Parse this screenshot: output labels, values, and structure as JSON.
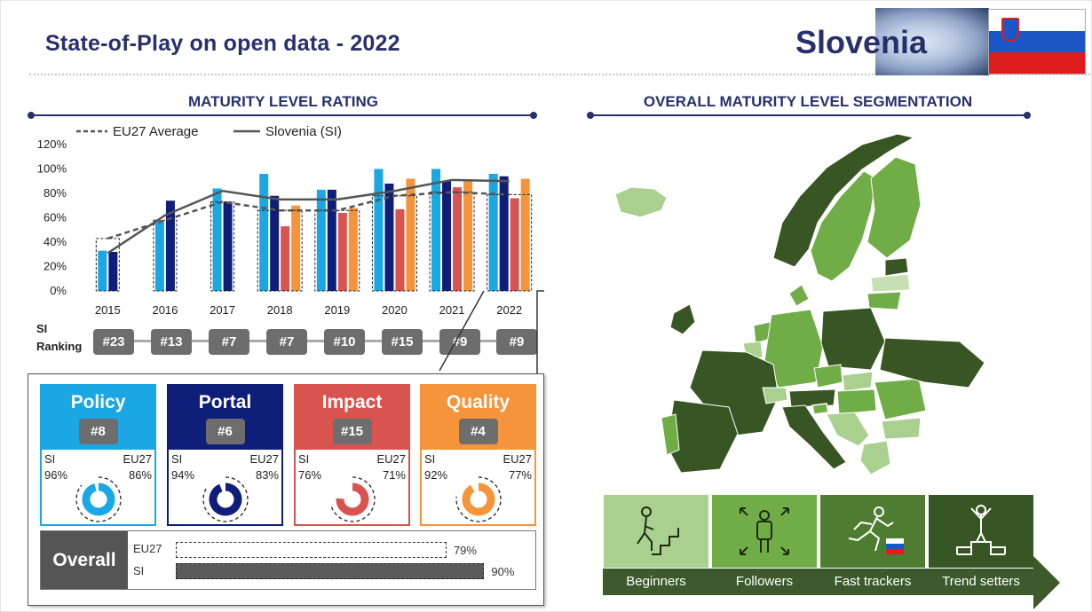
{
  "header": {
    "title": "State-of-Play on open data - 2022",
    "country": "Slovenia"
  },
  "maturity": {
    "section_title": "MATURITY LEVEL RATING",
    "legend": {
      "eu": "EU27 Average",
      "si": "Slovenia (SI)"
    },
    "ranking_label_1": "SI",
    "ranking_label_2": "Ranking",
    "ranks": [
      "#23",
      "#13",
      "#7",
      "#7",
      "#10",
      "#15",
      "#9",
      "#9"
    ]
  },
  "chart_data": {
    "type": "bar",
    "categories": [
      "2015",
      "2016",
      "2017",
      "2018",
      "2019",
      "2020",
      "2021",
      "2022"
    ],
    "ylim": [
      0,
      120
    ],
    "yticks": [
      "0%",
      "20%",
      "40%",
      "60%",
      "80%",
      "100%",
      "120%"
    ],
    "series": [
      {
        "name": "Policy",
        "values": [
          33,
          57,
          84,
          96,
          83,
          100,
          100,
          96
        ],
        "color": "#1aa7e3"
      },
      {
        "name": "Portal",
        "values": [
          32,
          74,
          73,
          78,
          83,
          88,
          90,
          94
        ],
        "color": "#0f1e78"
      },
      {
        "name": "Impact",
        "values": [
          null,
          null,
          null,
          53,
          64,
          67,
          85,
          76
        ],
        "color": "#d9534f"
      },
      {
        "name": "Quality",
        "values": [
          null,
          null,
          null,
          70,
          68,
          92,
          91,
          92
        ],
        "color": "#f5943a"
      }
    ],
    "lines": [
      {
        "name": "EU27 Average",
        "values": [
          43,
          58,
          73,
          66,
          66,
          78,
          81,
          79
        ],
        "style": "dashed"
      },
      {
        "name": "Slovenia (SI)",
        "values": [
          31,
          62,
          82,
          75,
          75,
          82,
          91,
          90
        ],
        "style": "solid"
      }
    ]
  },
  "cards": [
    {
      "name": "Policy",
      "rank": "#8",
      "si_label": "SI",
      "eu_label": "EU27",
      "si_value": "96%",
      "eu_value": "86%",
      "si_pct": 96,
      "eu_pct": 86,
      "color": "#1aa7e3"
    },
    {
      "name": "Portal",
      "rank": "#6",
      "si_label": "SI",
      "eu_label": "EU27",
      "si_value": "94%",
      "eu_value": "83%",
      "si_pct": 94,
      "eu_pct": 83,
      "color": "#0f1e78"
    },
    {
      "name": "Impact",
      "rank": "#15",
      "si_label": "SI",
      "eu_label": "EU27",
      "si_value": "76%",
      "eu_value": "71%",
      "si_pct": 76,
      "eu_pct": 71,
      "color": "#d9534f"
    },
    {
      "name": "Quality",
      "rank": "#4",
      "si_label": "SI",
      "eu_label": "EU27",
      "si_value": "92%",
      "eu_value": "77%",
      "si_pct": 92,
      "eu_pct": 77,
      "color": "#f5943a"
    }
  ],
  "overall": {
    "label": "Overall",
    "eu_label": "EU27",
    "si_label": "SI",
    "eu_value": "79%",
    "si_value": "90%",
    "eu_pct": 79,
    "si_pct": 90
  },
  "segmentation": {
    "section_title": "OVERALL MATURITY LEVEL SEGMENTATION",
    "segments": [
      {
        "label": "Beginners",
        "color": "#a9d08e",
        "icon": "stairs-climber-icon"
      },
      {
        "label": "Followers",
        "color": "#70ad47",
        "icon": "person-arrows-icon"
      },
      {
        "label": "Fast trackers",
        "color": "#4e7d31",
        "icon": "runner-flag-icon"
      },
      {
        "label": "Trend setters",
        "color": "#375623",
        "icon": "podium-winner-icon"
      }
    ]
  }
}
